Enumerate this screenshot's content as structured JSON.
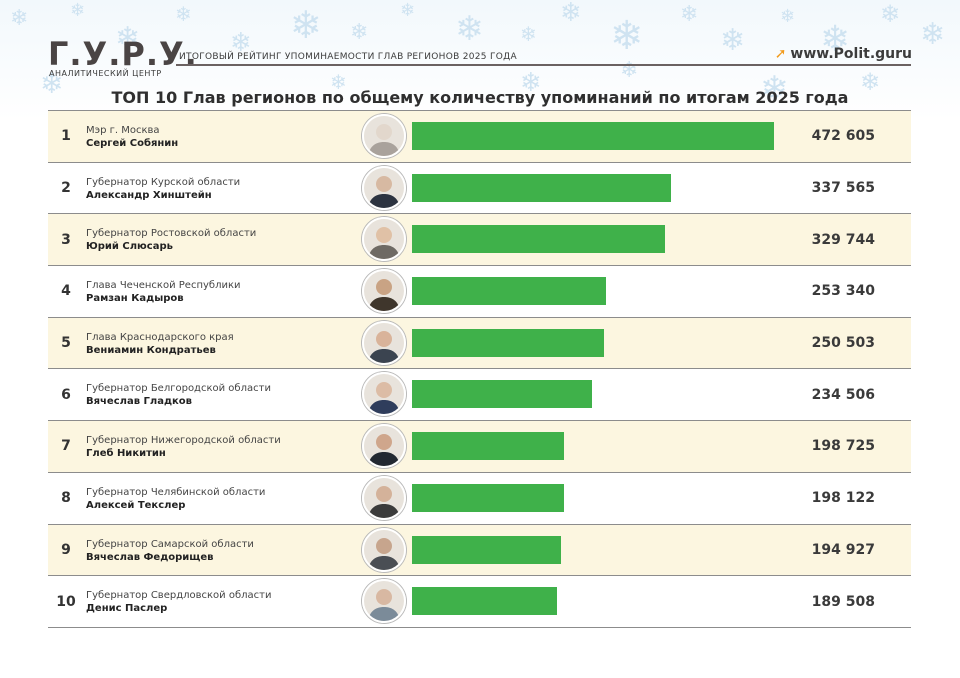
{
  "header": {
    "logo": "Г.У.Р.У.",
    "logo_subtitle": "АНАЛИТИЧЕСКИЙ ЦЕНТР",
    "title": "ИТОГОВЫЙ РЕЙТИНГ УПОМИНАЕМОСТИ ГЛАВ РЕГИОНОВ 2025 ГОДА",
    "site": "www.Polit.guru"
  },
  "colors": {
    "bar": "#3fb14a",
    "row_highlight": "#fcf6e0",
    "accent_arrow": "#f29b1c"
  },
  "chart_data": {
    "type": "bar",
    "orientation": "horizontal",
    "title": "ТОП 10 Глав регионов по общему количеству упоминаний по итогам 2025 года",
    "xlim": [
      0,
      472605
    ],
    "rows": [
      {
        "rank": "1",
        "position": "Мэр г. Москва",
        "name": "Сергей Собянин",
        "value": 472605,
        "label": "472 605"
      },
      {
        "rank": "2",
        "position": "Губернатор Курской области",
        "name": "Александр Хинштейн",
        "value": 337565,
        "label": "337 565"
      },
      {
        "rank": "3",
        "position": "Губернатор Ростовской области",
        "name": "Юрий Слюсарь",
        "value": 329744,
        "label": "329 744"
      },
      {
        "rank": "4",
        "position": "Глава Чеченской Республики",
        "name": "Рамзан Кадыров",
        "value": 253340,
        "label": "253 340"
      },
      {
        "rank": "5",
        "position": "Глава Краснодарского края",
        "name": "Вениамин Кондратьев",
        "value": 250503,
        "label": "250 503"
      },
      {
        "rank": "6",
        "position": "Губернатор Белгородской области",
        "name": "Вячеслав Гладков",
        "value": 234506,
        "label": "234 506"
      },
      {
        "rank": "7",
        "position": "Губернатор Нижегородской области",
        "name": "Глеб Никитин",
        "value": 198725,
        "label": "198 725"
      },
      {
        "rank": "8",
        "position": "Губернатор Челябинской области",
        "name": "Алексей Текслер",
        "value": 198122,
        "label": "198 122"
      },
      {
        "rank": "9",
        "position": "Губернатор Самарской области",
        "name": "Вячеслав Федорищев",
        "value": 194927,
        "label": "194 927"
      },
      {
        "rank": "10",
        "position": "Губернатор Свердловской области",
        "name": "Денис Паслер",
        "value": 189508,
        "label": "189 508"
      }
    ]
  }
}
